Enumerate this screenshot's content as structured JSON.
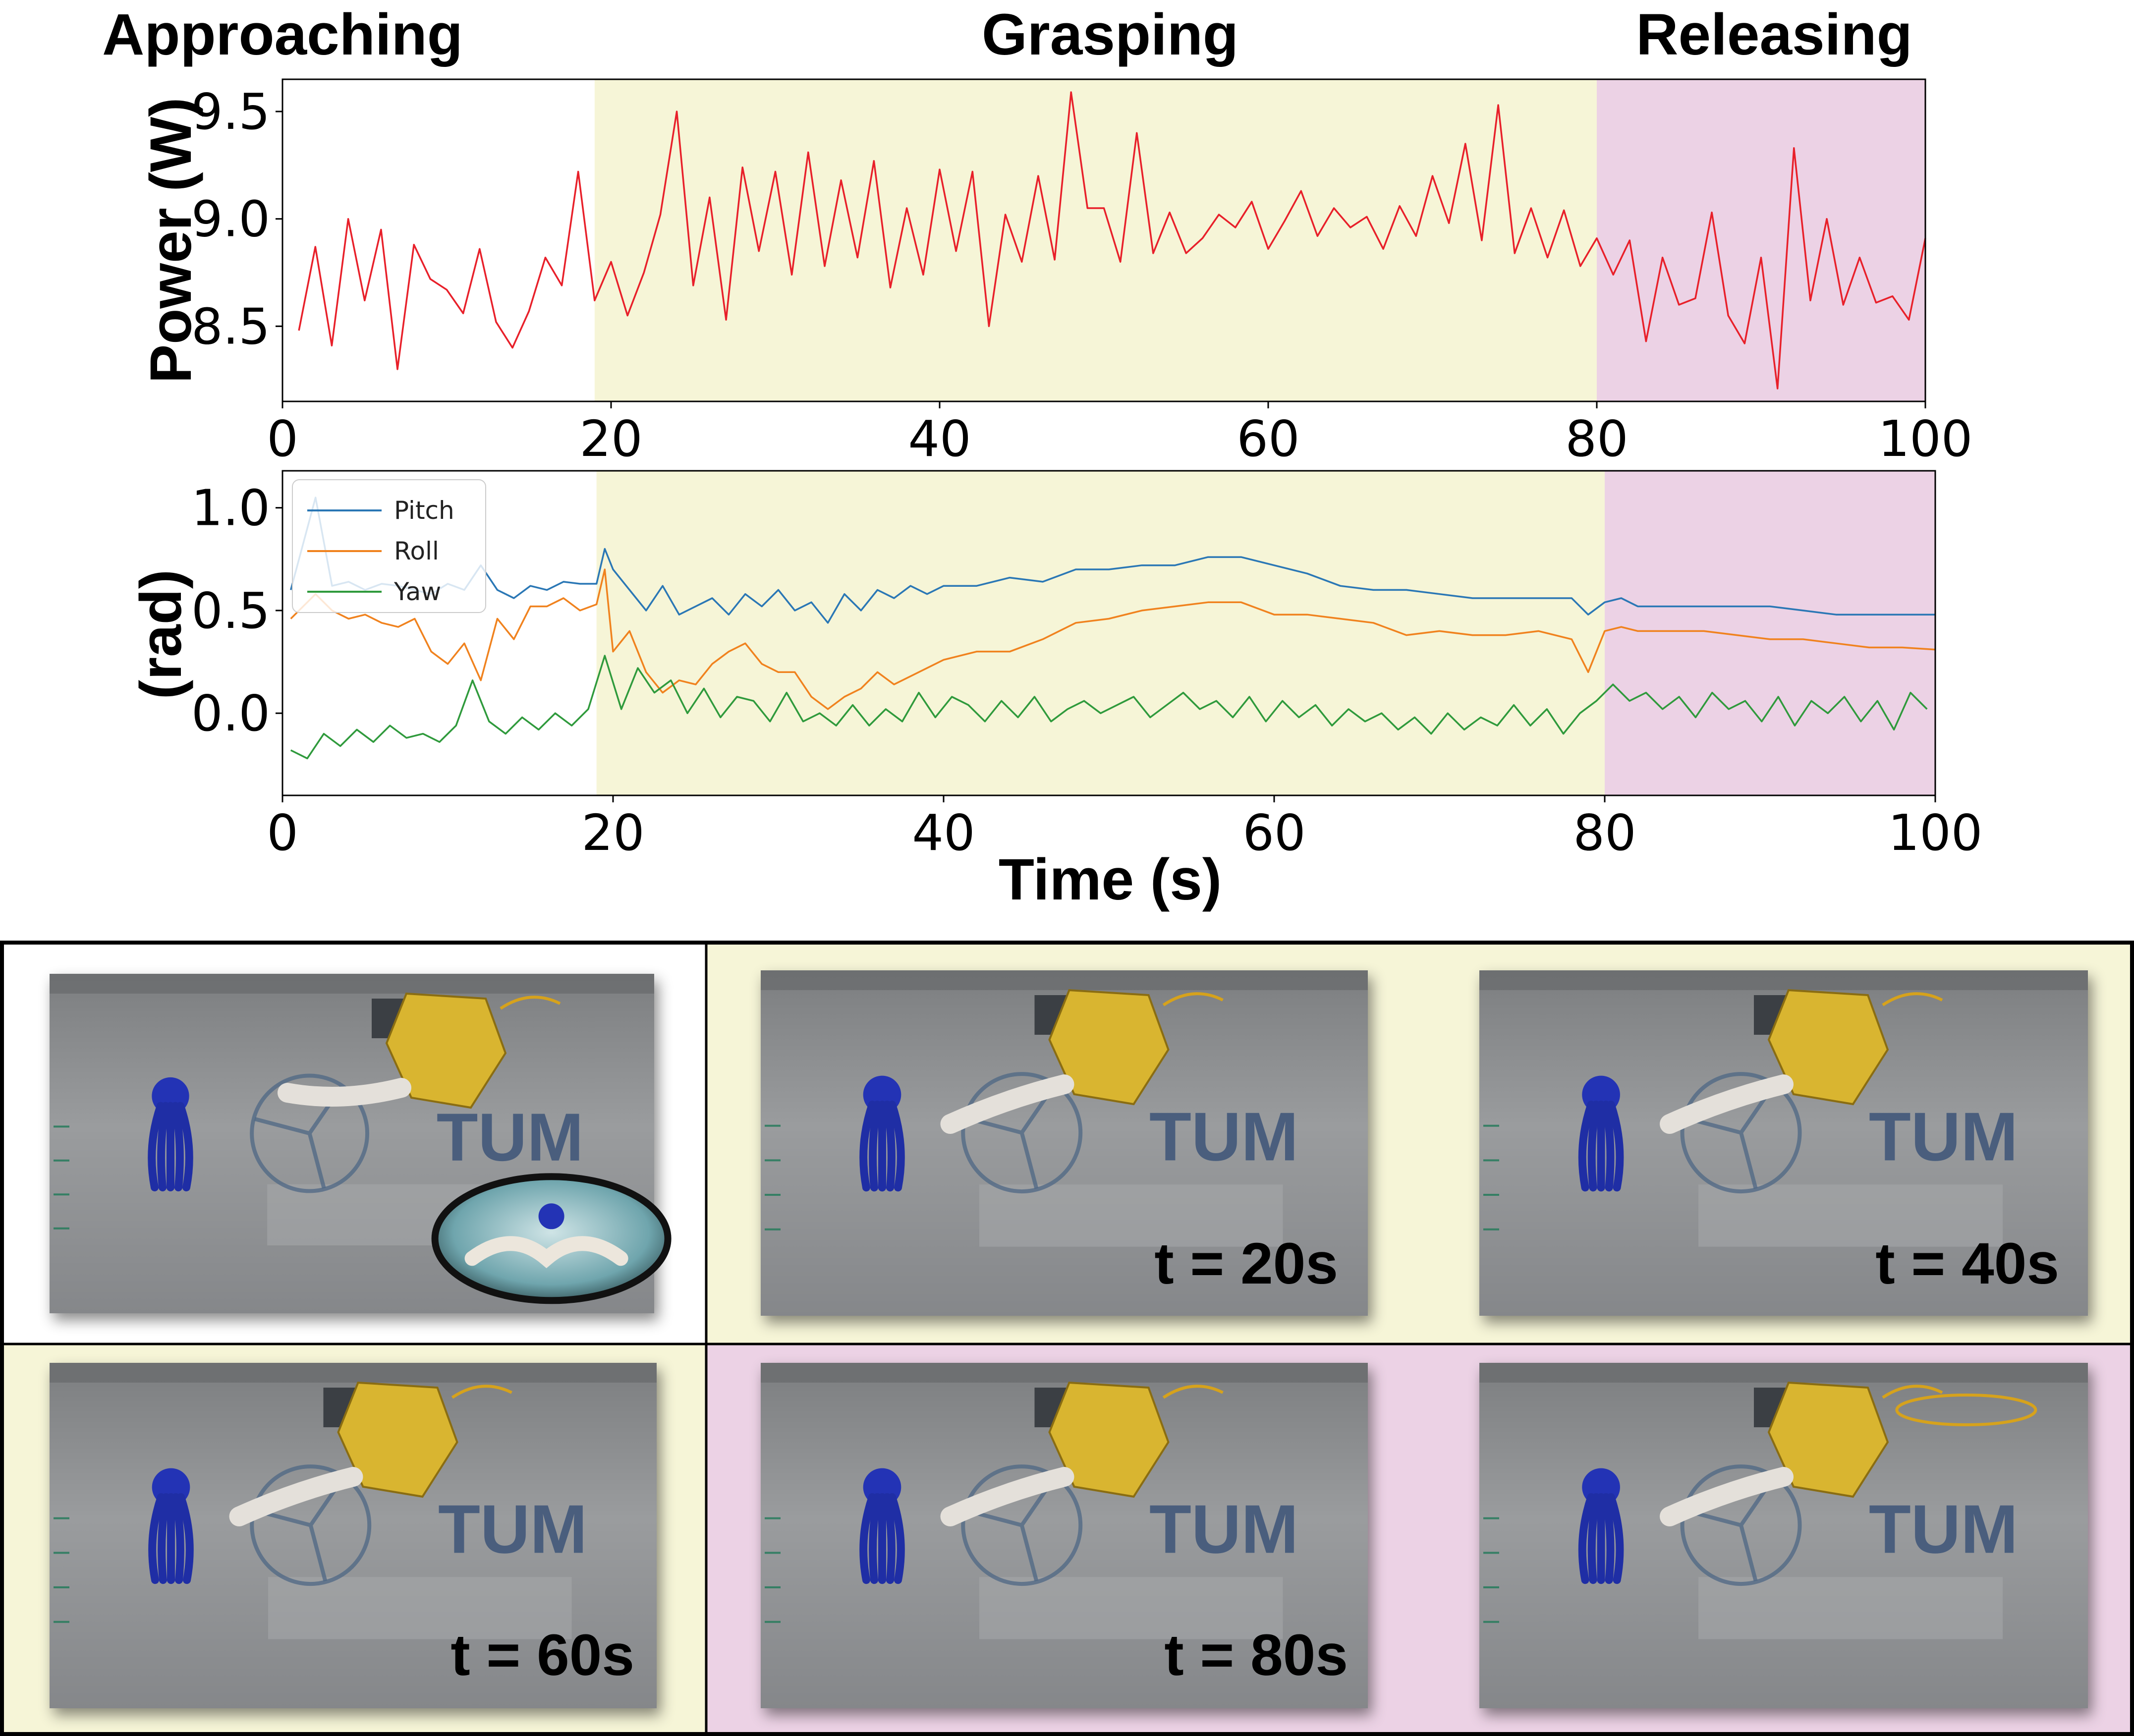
{
  "phases": {
    "approaching": "Approaching",
    "grasping": "Grasping",
    "releasing": "Releasing"
  },
  "colors": {
    "grasping_bg": "#f6f5d7",
    "releasing_bg": "#ecd2e5",
    "power": "#e8202a",
    "pitch": "#2a77b5",
    "roll": "#f0821e",
    "yaw": "#2f9a3c"
  },
  "chart_data": [
    {
      "type": "line",
      "title": "",
      "xlabel": "",
      "ylabel": "Power (W)",
      "xlim": [
        0,
        100
      ],
      "ylim": [
        8.15,
        9.65
      ],
      "xticks": [
        "0",
        "20",
        "40",
        "60",
        "80",
        "100"
      ],
      "yticks": [
        "8.5",
        "9.0",
        "9.5"
      ],
      "shaded_regions": [
        {
          "phase": "grasping",
          "x": [
            19,
            80
          ]
        },
        {
          "phase": "releasing",
          "x": [
            80,
            100
          ]
        }
      ],
      "series": [
        {
          "name": "Power",
          "x": [
            1,
            2,
            3,
            4,
            5,
            6,
            7,
            8,
            9,
            10,
            11,
            12,
            13,
            14,
            15,
            16,
            17,
            18,
            19,
            20,
            21,
            22,
            23,
            24,
            25,
            26,
            27,
            28,
            29,
            30,
            31,
            32,
            33,
            34,
            35,
            36,
            37,
            38,
            39,
            40,
            41,
            42,
            43,
            44,
            45,
            46,
            47,
            48,
            49,
            50,
            51,
            52,
            53,
            54,
            55,
            56,
            57,
            58,
            59,
            60,
            61,
            62,
            63,
            64,
            65,
            66,
            67,
            68,
            69,
            70,
            71,
            72,
            73,
            74,
            75,
            76,
            77,
            78,
            79,
            80,
            81,
            82,
            83,
            84,
            85,
            86,
            87,
            88,
            89,
            90,
            91,
            92,
            93,
            94,
            95,
            96,
            97,
            98,
            99,
            100
          ],
          "y": [
            8.48,
            8.87,
            8.41,
            9.0,
            8.62,
            8.95,
            8.3,
            8.88,
            8.72,
            8.67,
            8.56,
            8.86,
            8.52,
            8.4,
            8.57,
            8.82,
            8.69,
            9.22,
            8.62,
            8.8,
            8.55,
            8.75,
            9.02,
            9.5,
            8.69,
            9.1,
            8.53,
            9.24,
            8.85,
            9.22,
            8.74,
            9.31,
            8.78,
            9.18,
            8.82,
            9.27,
            8.68,
            9.05,
            8.74,
            9.23,
            8.85,
            9.22,
            8.5,
            9.02,
            8.8,
            9.2,
            8.81,
            9.59,
            9.05,
            9.05,
            8.8,
            9.4,
            8.84,
            9.03,
            8.84,
            8.91,
            9.02,
            8.96,
            9.08,
            8.86,
            8.99,
            9.13,
            8.92,
            9.05,
            8.96,
            9.01,
            8.86,
            9.06,
            8.92,
            9.2,
            8.98,
            9.35,
            8.9,
            9.53,
            8.84,
            9.05,
            8.82,
            9.04,
            8.78,
            8.91,
            8.74,
            8.9,
            8.43,
            8.82,
            8.6,
            8.63,
            9.03,
            8.55,
            8.42,
            8.82,
            8.21,
            9.33,
            8.62,
            9.0,
            8.6,
            8.82,
            8.61,
            8.64,
            8.53,
            8.91
          ]
        }
      ]
    },
    {
      "type": "line",
      "title": "",
      "xlabel": "Time (s)",
      "ylabel": "(rad)",
      "xlim": [
        0,
        100
      ],
      "ylim": [
        -0.4,
        1.18
      ],
      "xticks": [
        "0",
        "20",
        "40",
        "60",
        "80",
        "100"
      ],
      "yticks": [
        "0.0",
        "0.5",
        "1.0"
      ],
      "legend": {
        "position": "top-left",
        "entries": [
          "Pitch",
          "Roll",
          "Yaw"
        ]
      },
      "shaded_regions": [
        {
          "phase": "grasping",
          "x": [
            19,
            80
          ]
        },
        {
          "phase": "releasing",
          "x": [
            80,
            100
          ]
        }
      ],
      "series": [
        {
          "name": "Pitch",
          "x": [
            0.5,
            2,
            3,
            4,
            5,
            6,
            7,
            8,
            9,
            10,
            11,
            12,
            13,
            14,
            15,
            16,
            17,
            18,
            19,
            19.5,
            20,
            21,
            22,
            23,
            24,
            25,
            26,
            27,
            28,
            29,
            30,
            31,
            32,
            33,
            34,
            35,
            36,
            37,
            38,
            39,
            40,
            42,
            44,
            46,
            48,
            50,
            52,
            54,
            56,
            58,
            60,
            62,
            64,
            66,
            68,
            70,
            72,
            74,
            76,
            78,
            79,
            80,
            81,
            82,
            84,
            86,
            88,
            90,
            92,
            94,
            96,
            98,
            100
          ],
          "y": [
            0.6,
            1.05,
            0.62,
            0.64,
            0.6,
            0.63,
            0.62,
            0.6,
            0.58,
            0.63,
            0.6,
            0.72,
            0.6,
            0.56,
            0.62,
            0.6,
            0.64,
            0.63,
            0.63,
            0.8,
            0.7,
            0.6,
            0.5,
            0.62,
            0.48,
            0.52,
            0.56,
            0.48,
            0.58,
            0.52,
            0.6,
            0.5,
            0.54,
            0.44,
            0.58,
            0.5,
            0.6,
            0.56,
            0.62,
            0.58,
            0.62,
            0.62,
            0.66,
            0.64,
            0.7,
            0.7,
            0.72,
            0.72,
            0.76,
            0.76,
            0.72,
            0.68,
            0.62,
            0.6,
            0.6,
            0.58,
            0.56,
            0.56,
            0.56,
            0.56,
            0.48,
            0.54,
            0.56,
            0.52,
            0.52,
            0.52,
            0.52,
            0.52,
            0.5,
            0.48,
            0.48,
            0.48,
            0.48
          ]
        },
        {
          "name": "Roll",
          "x": [
            0.5,
            2,
            3,
            4,
            5,
            6,
            7,
            8,
            9,
            10,
            11,
            12,
            13,
            14,
            15,
            16,
            17,
            18,
            19,
            19.5,
            20,
            21,
            22,
            23,
            24,
            25,
            26,
            27,
            28,
            29,
            30,
            31,
            32,
            33,
            34,
            35,
            36,
            37,
            38,
            40,
            42,
            44,
            46,
            48,
            50,
            52,
            54,
            56,
            58,
            60,
            62,
            64,
            66,
            68,
            70,
            72,
            74,
            76,
            78,
            79,
            80,
            81,
            82,
            84,
            86,
            88,
            90,
            92,
            94,
            96,
            98,
            100
          ],
          "y": [
            0.46,
            0.58,
            0.5,
            0.46,
            0.48,
            0.44,
            0.42,
            0.46,
            0.3,
            0.24,
            0.34,
            0.16,
            0.46,
            0.36,
            0.52,
            0.52,
            0.56,
            0.5,
            0.53,
            0.7,
            0.3,
            0.4,
            0.2,
            0.1,
            0.16,
            0.14,
            0.24,
            0.3,
            0.34,
            0.24,
            0.2,
            0.2,
            0.08,
            0.02,
            0.08,
            0.12,
            0.2,
            0.14,
            0.18,
            0.26,
            0.3,
            0.3,
            0.36,
            0.44,
            0.46,
            0.5,
            0.52,
            0.54,
            0.54,
            0.48,
            0.48,
            0.46,
            0.44,
            0.38,
            0.4,
            0.38,
            0.38,
            0.4,
            0.36,
            0.2,
            0.4,
            0.42,
            0.4,
            0.4,
            0.4,
            0.38,
            0.36,
            0.36,
            0.34,
            0.32,
            0.32,
            0.31
          ]
        },
        {
          "name": "Yaw",
          "x": [
            0.5,
            1.5,
            2.5,
            3.5,
            4.5,
            5.5,
            6.5,
            7.5,
            8.5,
            9.5,
            10.5,
            11.5,
            12.5,
            13.5,
            14.5,
            15.5,
            16.5,
            17.5,
            18.5,
            19.5,
            20.5,
            21.5,
            22.5,
            23.5,
            24.5,
            25.5,
            26.5,
            27.5,
            28.5,
            29.5,
            30.5,
            31.5,
            32.5,
            33.5,
            34.5,
            35.5,
            36.5,
            37.5,
            38.5,
            39.5,
            40.5,
            41.5,
            42.5,
            43.5,
            44.5,
            45.5,
            46.5,
            47.5,
            48.5,
            49.5,
            50.5,
            51.5,
            52.5,
            53.5,
            54.5,
            55.5,
            56.5,
            57.5,
            58.5,
            59.5,
            60.5,
            61.5,
            62.5,
            63.5,
            64.5,
            65.5,
            66.5,
            67.5,
            68.5,
            69.5,
            70.5,
            71.5,
            72.5,
            73.5,
            74.5,
            75.5,
            76.5,
            77.5,
            78.5,
            79.5,
            80.5,
            81.5,
            82.5,
            83.5,
            84.5,
            85.5,
            86.5,
            87.5,
            88.5,
            89.5,
            90.5,
            91.5,
            92.5,
            93.5,
            94.5,
            95.5,
            96.5,
            97.5,
            98.5,
            99.5
          ],
          "y": [
            -0.18,
            -0.22,
            -0.1,
            -0.16,
            -0.08,
            -0.14,
            -0.06,
            -0.12,
            -0.1,
            -0.14,
            -0.06,
            0.16,
            -0.04,
            -0.1,
            -0.02,
            -0.08,
            0.0,
            -0.06,
            0.02,
            0.28,
            0.02,
            0.22,
            0.1,
            0.16,
            0.0,
            0.12,
            -0.02,
            0.08,
            0.06,
            -0.04,
            0.1,
            -0.04,
            0.0,
            -0.06,
            0.04,
            -0.06,
            0.02,
            -0.04,
            0.1,
            -0.02,
            0.08,
            0.04,
            -0.04,
            0.06,
            -0.02,
            0.08,
            -0.04,
            0.02,
            0.06,
            0.0,
            0.04,
            0.08,
            -0.02,
            0.04,
            0.1,
            0.02,
            0.06,
            -0.02,
            0.08,
            -0.04,
            0.06,
            -0.02,
            0.04,
            -0.06,
            0.02,
            -0.04,
            0.0,
            -0.08,
            -0.02,
            -0.1,
            0.0,
            -0.08,
            -0.02,
            -0.06,
            0.04,
            -0.06,
            0.02,
            -0.1,
            0.0,
            0.06,
            0.14,
            0.06,
            0.1,
            0.02,
            0.08,
            -0.02,
            0.1,
            0.02,
            0.06,
            -0.04,
            0.08,
            -0.06,
            0.06,
            0.0,
            0.08,
            -0.04,
            0.06,
            -0.08,
            0.1,
            0.02
          ]
        }
      ]
    }
  ],
  "frames": [
    {
      "label": "",
      "phase": "approaching",
      "inset": true
    },
    {
      "label": "t = 20s",
      "phase": "grasping",
      "inset": false
    },
    {
      "label": "t = 40s",
      "phase": "grasping",
      "inset": false
    },
    {
      "label": "t = 60s",
      "phase": "grasping",
      "inset": false
    },
    {
      "label": "t = 80s",
      "phase": "releasing",
      "inset": false
    },
    {
      "label": "",
      "phase": "releasing",
      "inset": false
    }
  ],
  "photo_text": {
    "logo": "TUM"
  }
}
